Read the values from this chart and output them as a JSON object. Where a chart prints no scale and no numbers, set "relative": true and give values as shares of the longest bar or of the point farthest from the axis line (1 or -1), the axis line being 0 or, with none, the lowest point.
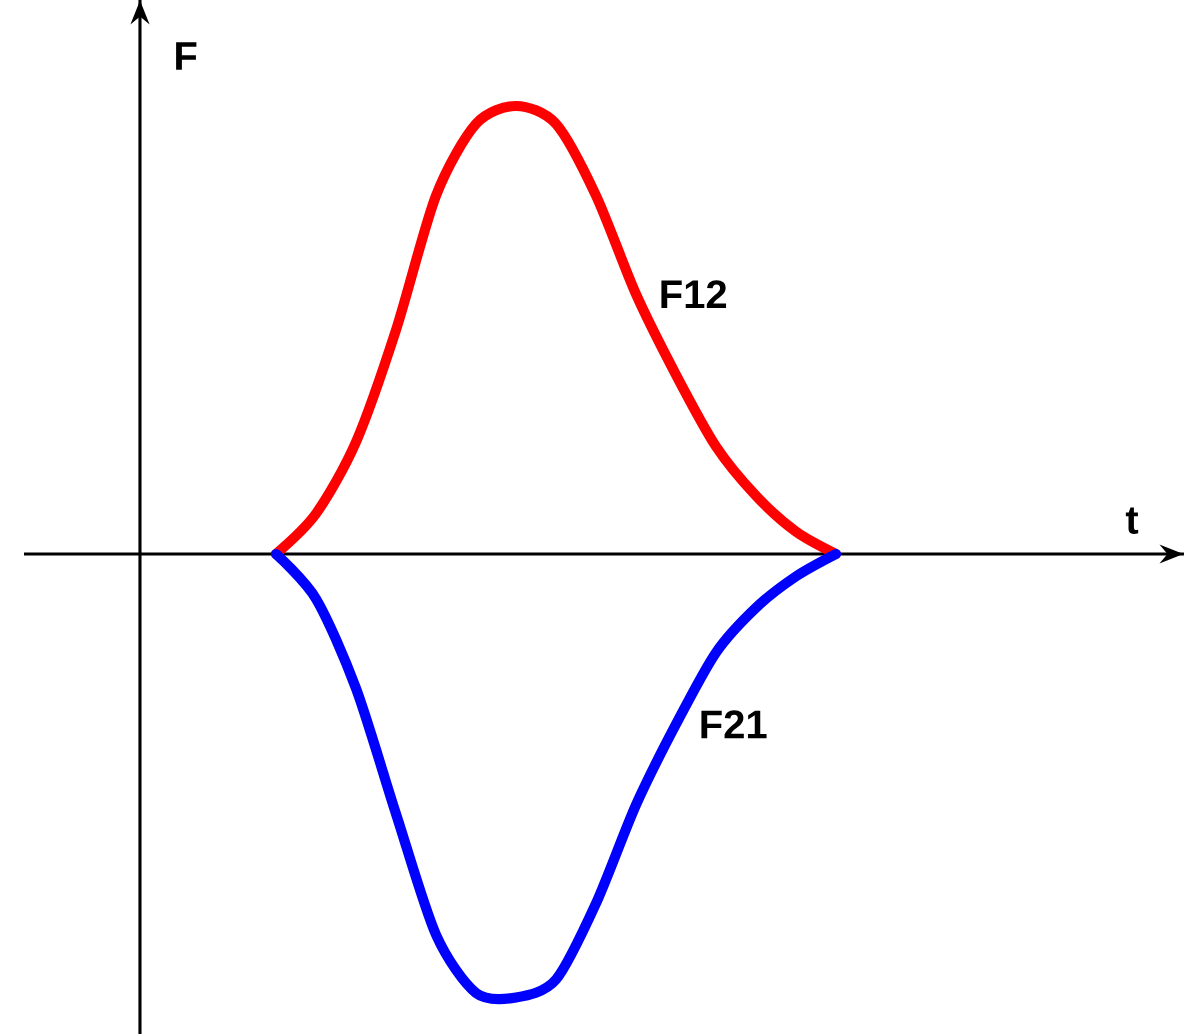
{
  "chart_data": {
    "type": "line",
    "annotations": [
      "t"
    ],
    "ylabel": "F",
    "relative": true,
    "categories": [
      null,
      null,
      null,
      null,
      null,
      null,
      null,
      null,
      null,
      null,
      null,
      null,
      null,
      null,
      null
    ],
    "series": [
      {
        "name": "F12",
        "color": "#ff0000",
        "values": [
          0,
          0.09,
          0.25,
          0.5,
          0.8,
          0.96,
          1.0,
          0.96,
          0.8,
          0.58,
          0.4,
          0.24,
          0.13,
          0.05,
          0
        ]
      },
      {
        "name": "F21",
        "color": "#0000ff",
        "values": [
          0,
          -0.1,
          -0.3,
          -0.58,
          -0.85,
          -0.98,
          -0.99,
          -0.95,
          -0.78,
          -0.56,
          -0.38,
          -0.22,
          -0.12,
          -0.05,
          0
        ]
      }
    ]
  }
}
